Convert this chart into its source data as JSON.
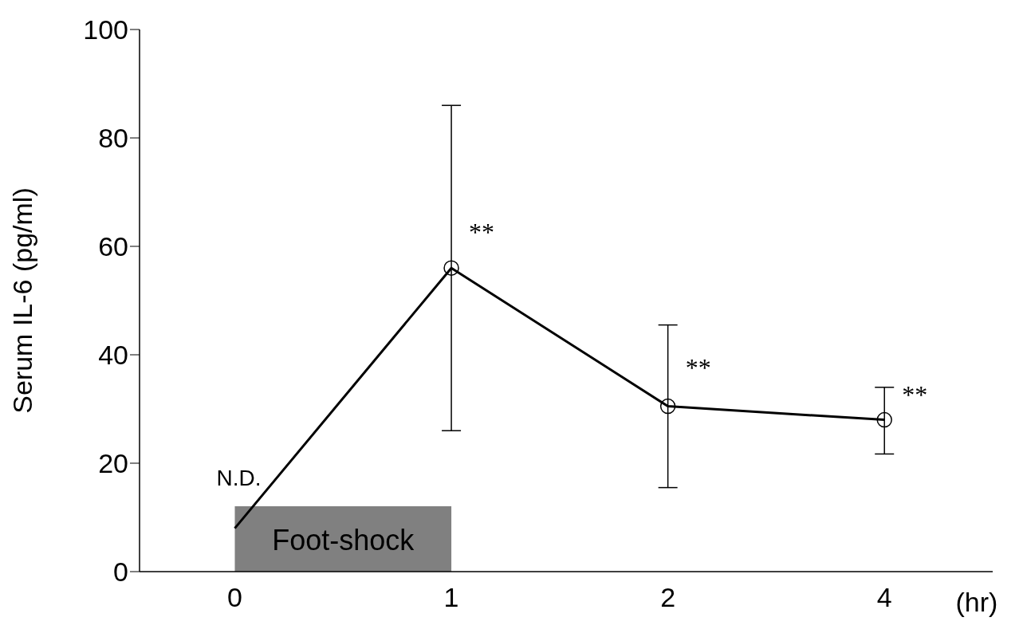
{
  "chart_data": {
    "type": "line",
    "ylabel": "Serum IL-6 (pg/ml)",
    "xlabel": "(hr)",
    "categories": [
      "0",
      "1",
      "2",
      "4"
    ],
    "ylim": [
      0,
      100
    ],
    "yticks": [
      0,
      20,
      40,
      60,
      80,
      100
    ],
    "grid": false,
    "legend": false,
    "series": [
      {
        "color": "#000000",
        "marker": "none",
        "values": [
          8,
          56,
          30.5,
          28
        ]
      },
      {
        "type": "scatter",
        "color": "#000000",
        "marker": "circle",
        "x": [
          "1",
          "2",
          "4"
        ],
        "values": [
          56,
          30.5,
          28
        ],
        "errors": [
          [
            26,
            86
          ],
          [
            15.5,
            45.5
          ],
          [
            21.7,
            34
          ]
        ]
      }
    ],
    "bands": [
      {
        "axis": "x",
        "from": "0",
        "to": "1",
        "label": "Foot-shock",
        "color": "#808080"
      }
    ],
    "annotations": [
      "N.D.",
      {
        "text": "**",
        "x": "1",
        "y": 61
      },
      {
        "text": "**",
        "x": "2",
        "y": 36
      },
      {
        "text": "**",
        "x": "4",
        "y": 31
      }
    ]
  }
}
